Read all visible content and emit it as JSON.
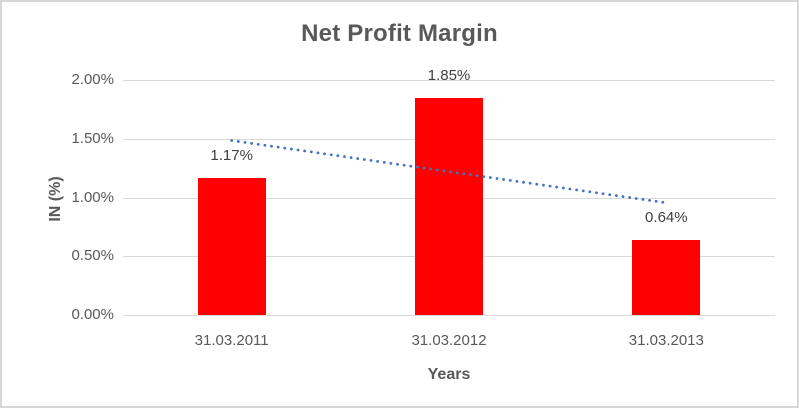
{
  "chart_data": {
    "type": "bar",
    "title": "Net Profit Margin",
    "xlabel": "Years",
    "ylabel": "IN (%)",
    "categories": [
      "31.03.2011",
      "31.03.2012",
      "31.03.2013"
    ],
    "values": [
      1.17,
      1.85,
      0.64
    ],
    "data_labels": [
      "1.17%",
      "1.85%",
      "0.64%"
    ],
    "yticks": [
      {
        "value": 0.0,
        "label": "0.00%"
      },
      {
        "value": 0.5,
        "label": "0.50%"
      },
      {
        "value": 1.0,
        "label": "1.00%"
      },
      {
        "value": 1.5,
        "label": "1.50%"
      },
      {
        "value": 2.0,
        "label": "2.00%"
      }
    ],
    "ylim": [
      0,
      2.0
    ],
    "grid": true,
    "legend": false,
    "bar_color": "#FF0000",
    "trendline": {
      "type": "linear",
      "style": "dotted",
      "color": "#4472C4",
      "start_value": 1.485,
      "end_value": 0.955
    }
  },
  "colors": {
    "title_text": "#595959",
    "axis_text": "#595959",
    "tick_text": "#595959",
    "data_label_text": "#404040",
    "gridline": "#D9D9D9",
    "border": "#D7D7D7",
    "background": "#FFFFFF"
  }
}
